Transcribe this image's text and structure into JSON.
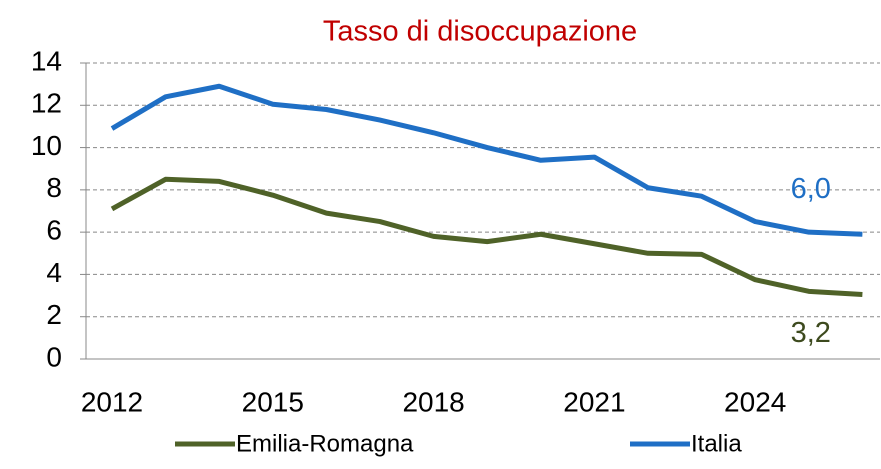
{
  "chart_data": {
    "type": "line",
    "title": "Tasso di disoccupazione",
    "categories": [
      "2012",
      null,
      null,
      "2015",
      null,
      null,
      "2018",
      null,
      null,
      "2021",
      null,
      null,
      "2024",
      null,
      null
    ],
    "series": [
      {
        "name": "Emilia-Romagna",
        "color": "#4f6228",
        "label_color": "#3d4a1e",
        "values": [
          7.1,
          8.5,
          8.4,
          7.75,
          6.9,
          6.5,
          5.8,
          5.55,
          5.9,
          5.45,
          5.0,
          4.95,
          3.75,
          3.2,
          3.05
        ],
        "value_labels": [
          null,
          null,
          null,
          null,
          null,
          null,
          null,
          null,
          null,
          null,
          null,
          null,
          null,
          "3,2",
          null
        ]
      },
      {
        "name": "Italia",
        "color": "#1f6fc5",
        "label_color": "#1f6fc5",
        "values": [
          10.9,
          12.4,
          12.9,
          12.05,
          11.8,
          11.3,
          10.7,
          10.0,
          9.4,
          9.55,
          8.1,
          7.7,
          6.5,
          6.0,
          5.9
        ],
        "value_labels": [
          null,
          null,
          null,
          null,
          null,
          null,
          null,
          null,
          null,
          null,
          null,
          null,
          null,
          "6,0",
          null
        ]
      }
    ],
    "ylim": [
      0,
      14
    ],
    "yticks": [
      0,
      2,
      4,
      6,
      8,
      10,
      12,
      14
    ],
    "grid": true,
    "legend": "bottom",
    "title_color": "#c00000"
  }
}
